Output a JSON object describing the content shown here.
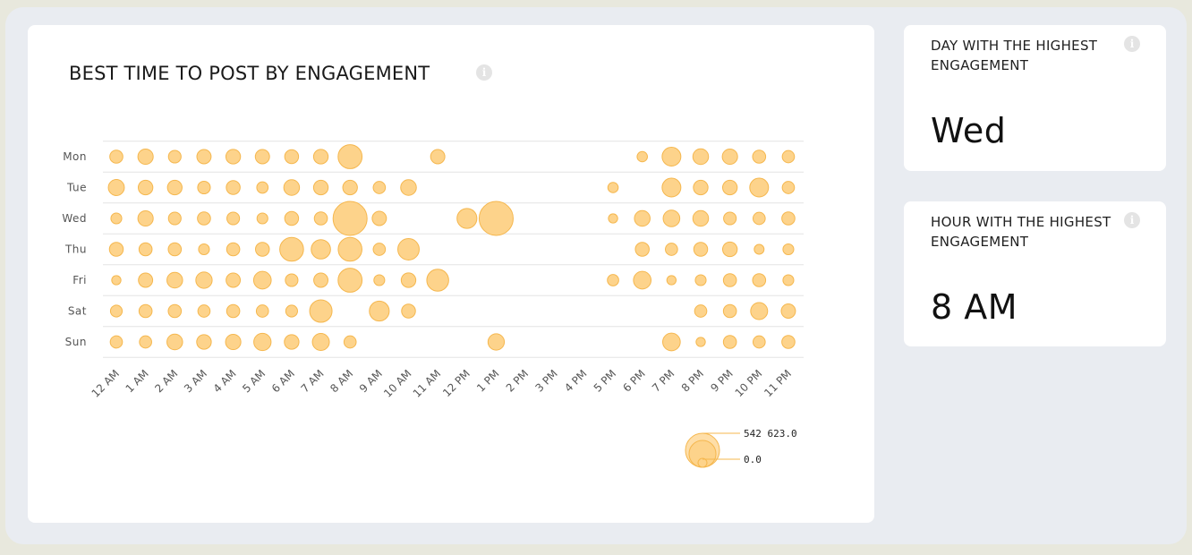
{
  "main": {
    "title": "BEST TIME TO POST BY ENGAGEMENT",
    "info_glyph": "i"
  },
  "stats": {
    "day": {
      "title": "DAY WITH THE HIGHEST ENGAGEMENT",
      "value": "Wed",
      "info_glyph": "i"
    },
    "hour": {
      "title": "HOUR WITH THE HIGHEST ENGAGEMENT",
      "value": "8 AM",
      "info_glyph": "i"
    }
  },
  "colors": {
    "bubble_fill": "#fdd38b",
    "bubble_stroke": "#f5b74e",
    "grid": "#e3e3e3",
    "label": "#555555"
  },
  "chart_data": {
    "type": "bubble-heatmap",
    "title": "BEST TIME TO POST BY ENGAGEMENT",
    "x_categories": [
      "12 AM",
      "1 AM",
      "2 AM",
      "3 AM",
      "4 AM",
      "5 AM",
      "6 AM",
      "7 AM",
      "8 AM",
      "9 AM",
      "10 AM",
      "11 AM",
      "12 PM",
      "1 PM",
      "2 PM",
      "3 PM",
      "4 PM",
      "5 PM",
      "6 PM",
      "7 PM",
      "8 PM",
      "9 PM",
      "10 PM",
      "11 PM"
    ],
    "y_categories": [
      "Mon",
      "Tue",
      "Wed",
      "Thu",
      "Fri",
      "Sat",
      "Sun"
    ],
    "values": [
      [
        80000,
        110000,
        75000,
        95000,
        100000,
        95000,
        90000,
        100000,
        270000,
        0,
        0,
        95000,
        0,
        0,
        0,
        0,
        0,
        0,
        50000,
        165000,
        115000,
        110000,
        80000,
        70000
      ],
      [
        120000,
        100000,
        100000,
        75000,
        90000,
        60000,
        115000,
        100000,
        100000,
        70000,
        115000,
        0,
        0,
        0,
        0,
        0,
        0,
        50000,
        0,
        165000,
        100000,
        100000,
        165000,
        70000
      ],
      [
        55000,
        110000,
        75000,
        80000,
        75000,
        55000,
        90000,
        80000,
        542623,
        95000,
        0,
        0,
        185000,
        542623,
        0,
        0,
        0,
        40000,
        115000,
        130000,
        115000,
        75000,
        70000,
        80000
      ],
      [
        90000,
        80000,
        80000,
        55000,
        80000,
        90000,
        265000,
        175000,
        265000,
        70000,
        215000,
        0,
        0,
        0,
        0,
        0,
        0,
        0,
        90000,
        70000,
        90000,
        100000,
        45000,
        55000
      ],
      [
        40000,
        95000,
        115000,
        125000,
        95000,
        145000,
        75000,
        95000,
        270000,
        55000,
        100000,
        225000,
        0,
        0,
        0,
        0,
        0,
        60000,
        145000,
        40000,
        55000,
        80000,
        80000,
        55000
      ],
      [
        65000,
        80000,
        80000,
        70000,
        80000,
        70000,
        65000,
        235000,
        0,
        185000,
        90000,
        0,
        0,
        0,
        0,
        0,
        0,
        0,
        0,
        0,
        70000,
        80000,
        135000,
        95000
      ],
      [
        70000,
        70000,
        115000,
        100000,
        110000,
        140000,
        100000,
        135000,
        70000,
        0,
        0,
        0,
        0,
        125000,
        0,
        0,
        0,
        0,
        0,
        145000,
        40000,
        80000,
        70000,
        80000
      ]
    ],
    "size_legend": {
      "max_label": "542 623.0",
      "min_label": "0.0",
      "max": 542623,
      "min": 0
    }
  }
}
